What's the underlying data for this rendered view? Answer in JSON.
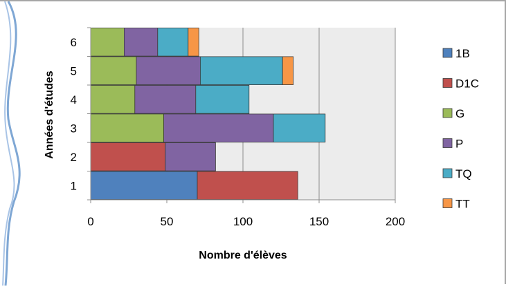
{
  "chart_data": {
    "type": "bar",
    "orientation": "horizontal",
    "stacked": true,
    "categories": [
      "1",
      "2",
      "3",
      "4",
      "5",
      "6"
    ],
    "xlabel": "Nombre d'élèves",
    "ylabel": "Années d'études",
    "xlim": [
      0,
      200
    ],
    "xticks": [
      "0",
      "50",
      "100",
      "150",
      "200"
    ],
    "grid": true,
    "legend_position": "right",
    "series": [
      {
        "name": "1B",
        "color": "#4f81bd",
        "values": [
          70,
          0,
          0,
          0,
          0,
          0
        ]
      },
      {
        "name": "D1C",
        "color": "#c0504d",
        "values": [
          66,
          49,
          0,
          0,
          0,
          0
        ]
      },
      {
        "name": "G",
        "color": "#9bbb59",
        "values": [
          0,
          0,
          48,
          29,
          30,
          22
        ]
      },
      {
        "name": "P",
        "color": "#8064a2",
        "values": [
          0,
          33,
          72,
          40,
          42,
          22
        ]
      },
      {
        "name": "TQ",
        "color": "#4bacc6",
        "values": [
          0,
          0,
          34,
          35,
          54,
          20
        ]
      },
      {
        "name": "TT",
        "color": "#f79646",
        "values": [
          0,
          0,
          0,
          0,
          7,
          7
        ]
      }
    ]
  }
}
